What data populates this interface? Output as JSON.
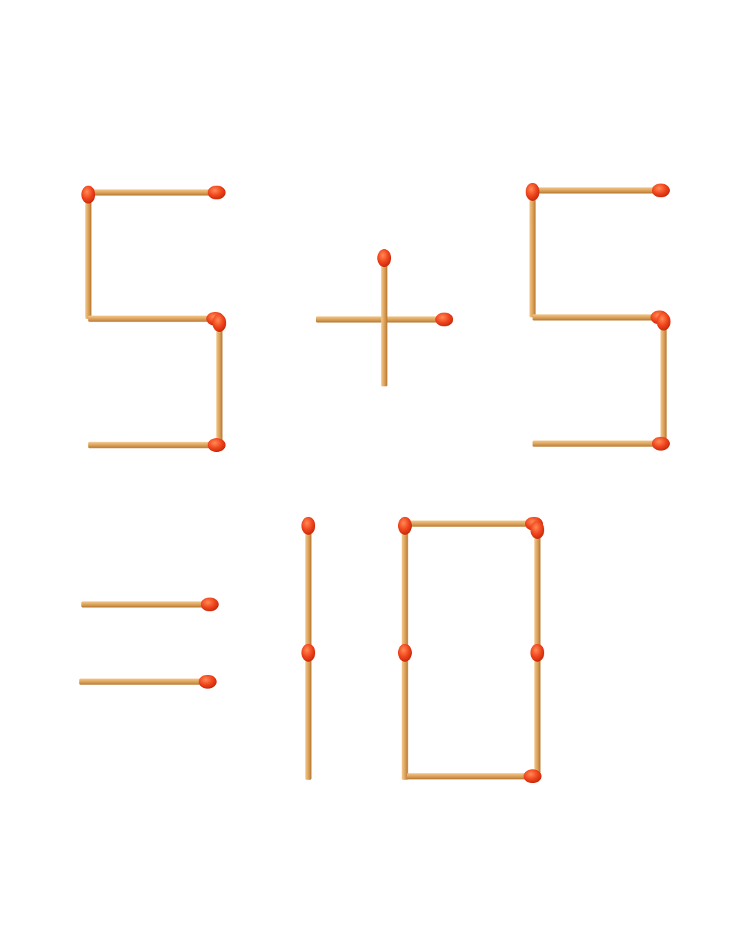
{
  "puzzle": {
    "equation": [
      "5",
      "+",
      "5",
      "=",
      "10"
    ],
    "colors": {
      "stick_light": "#f0c07e",
      "stick_mid": "#dca35c",
      "stick_dark": "#b87a35",
      "head_light": "#ff7a45",
      "head_mid": "#f0441c",
      "head_dark": "#c0280a",
      "background": "#ffffff"
    }
  }
}
